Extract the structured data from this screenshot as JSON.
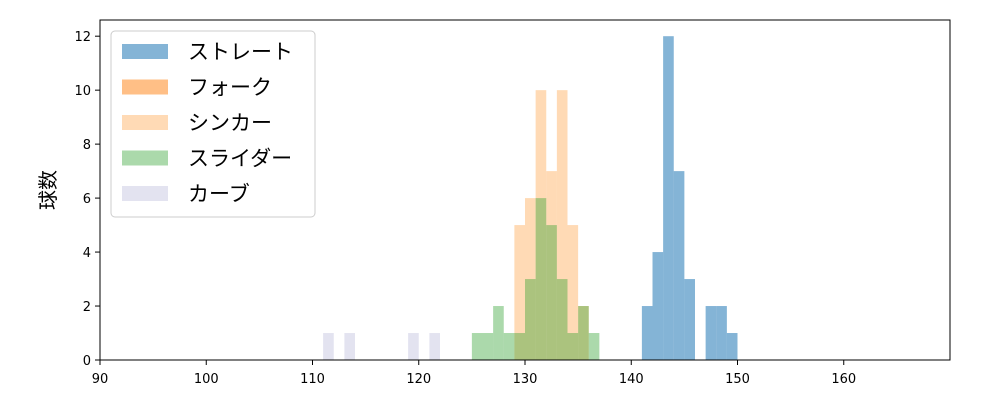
{
  "chart_data": {
    "type": "bar",
    "subtype": "histogram",
    "xlabel": "",
    "ylabel": "球数",
    "xlim": [
      90,
      170
    ],
    "ylim": [
      0,
      12.6
    ],
    "xticks": [
      90,
      100,
      110,
      120,
      130,
      140,
      150,
      160
    ],
    "yticks": [
      0,
      2,
      4,
      6,
      8,
      10,
      12
    ],
    "bin_width": 1.0,
    "grid": false,
    "legend_position": "top-left",
    "series": [
      {
        "name": "ストレート",
        "color": "#1f77b4",
        "opacity": 0.55,
        "bins": [
          [
            141,
            2
          ],
          [
            142,
            4
          ],
          [
            143,
            12
          ],
          [
            144,
            7
          ],
          [
            145,
            3
          ],
          [
            147,
            2
          ],
          [
            148,
            2
          ],
          [
            149,
            1
          ]
        ]
      },
      {
        "name": "フォーク",
        "color": "#ff7f0e",
        "opacity": 0.5,
        "bins": []
      },
      {
        "name": "シンカー",
        "color": "#ffbb78",
        "opacity": 0.55,
        "bins": [
          [
            129,
            5
          ],
          [
            130,
            6
          ],
          [
            131,
            10
          ],
          [
            132,
            7
          ],
          [
            133,
            10
          ],
          [
            134,
            5
          ],
          [
            135,
            2
          ]
        ]
      },
      {
        "name": "スライダー",
        "color": "#2ca02c",
        "opacity": 0.4,
        "bins": [
          [
            125,
            1
          ],
          [
            126,
            1
          ],
          [
            127,
            2
          ],
          [
            128,
            1
          ],
          [
            129,
            1
          ],
          [
            130,
            3
          ],
          [
            131,
            6
          ],
          [
            132,
            5
          ],
          [
            133,
            3
          ],
          [
            134,
            1
          ],
          [
            135,
            2
          ],
          [
            136,
            1
          ]
        ]
      },
      {
        "name": "カーブ",
        "color": "#c7c7e2",
        "opacity": 0.5,
        "bins": [
          [
            111,
            1
          ],
          [
            113,
            1
          ],
          [
            119,
            1
          ],
          [
            121,
            1
          ]
        ]
      }
    ]
  }
}
